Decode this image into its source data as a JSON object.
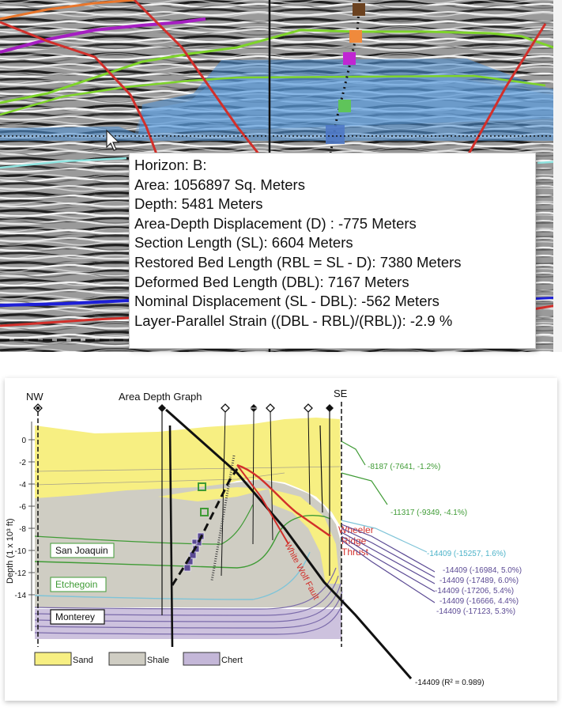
{
  "tooltip": {
    "lines": [
      "Horizon: B:",
      "Area: 1056897 Sq. Meters",
      "Depth: 5481 Meters",
      "Area-Depth Displacement (D) : -775 Meters",
      "Section Length (SL):  6604 Meters",
      "Restored Bed Length (RBL = SL - D): 7380 Meters",
      "Deformed Bed Length (DBL):  7167 Meters",
      "Nominal Displacement (SL - DBL): -562 Meters",
      "Layer-Parallel Strain ((DBL - RBL)/(RBL)): -2.9 %"
    ]
  },
  "section": {
    "nw_label": "NW",
    "se_label": "SE",
    "graph_label": "Area Depth Graph",
    "y_axis_label": "Depth (1 x 10³ ft)",
    "y_ticks": [
      "0",
      "-2",
      "-4",
      "-6",
      "-8",
      "-10",
      "-12",
      "-14"
    ],
    "formations": [
      "San Joaquin",
      "Etchegoin",
      "Monterey"
    ],
    "fault_labels": {
      "wheeler_1": "Wheeler",
      "wheeler_2": "Ridge",
      "wheeler_3": "Thrust",
      "white_wolf": "White Wolf Fault"
    },
    "annotations": [
      "-8187 (-7641, -1.2%)",
      "-11317 (-9349, -4.1%)",
      "-14409 (-15257, 1.6%)",
      "-14409 (-16984, 5.0%)",
      "-14409 (-17489, 6.0%)",
      "-14409 (-17206, 5.4%)",
      "-14409 (-16666, 4.4%)",
      "-14409 (-17123, 5.3%)",
      "-14409 (R² = 0.989)"
    ],
    "legend": [
      "Sand",
      "Shale",
      "Chert"
    ],
    "colors": {
      "sand": "#f7ef82",
      "shale": "#cfcdc3",
      "chert": "#c4b7d8",
      "fault_red": "#d22f2a",
      "horizon_green": "#3f9b35",
      "horizon_blue": "#7fc4d8",
      "horizon_purple": "#5b4a94"
    }
  }
}
